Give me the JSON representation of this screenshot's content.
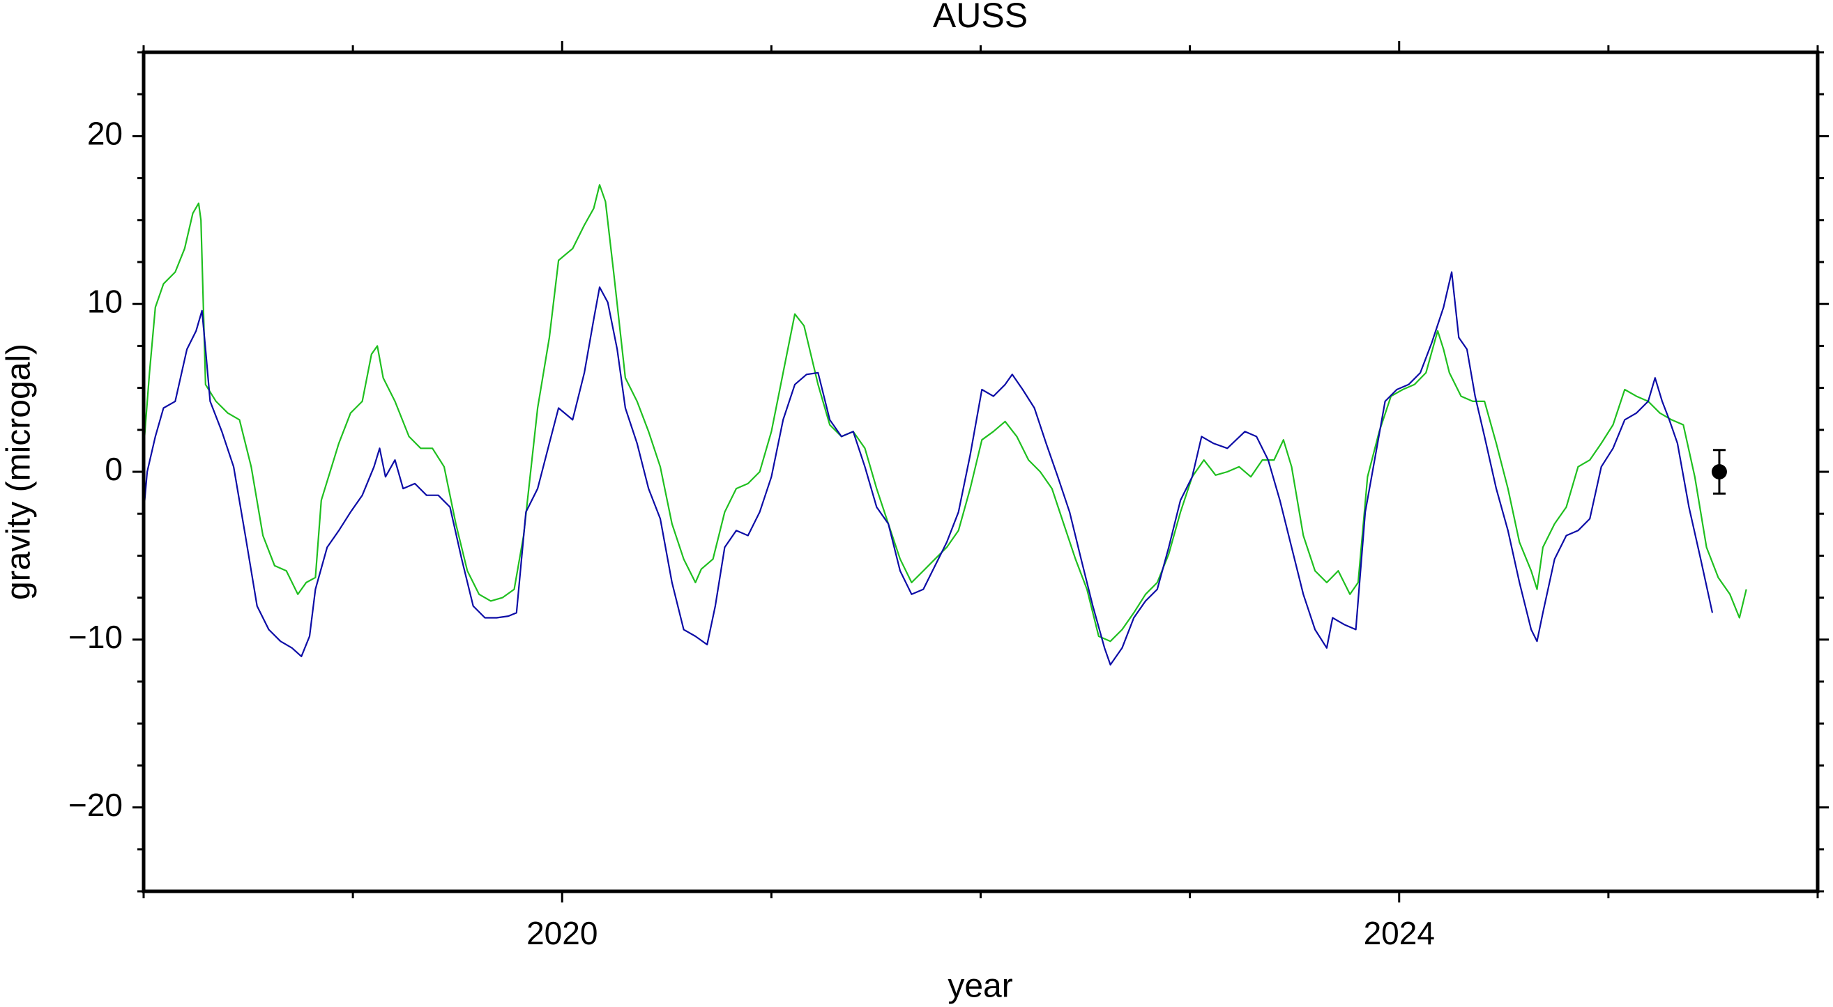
{
  "chart_data": {
    "type": "line",
    "title": "AUSS",
    "xlabel": "year",
    "ylabel": "gravity (microgal)",
    "xlim": [
      2018,
      2026
    ],
    "xticks": [
      2020,
      2024
    ],
    "ylim": [
      -25,
      25
    ],
    "yticks": [
      {
        "value": -20,
        "label": "−20"
      },
      {
        "value": -10,
        "label": "−10"
      },
      0,
      10,
      20
    ],
    "series": [
      {
        "color": "#1fbf1f",
        "x": [
          2018.0,
          2018.028,
          2018.056,
          2018.095,
          2018.151,
          2018.196,
          2018.235,
          2018.263,
          2018.274,
          2018.296,
          2018.346,
          2018.402,
          2018.458,
          2018.514,
          2018.57,
          2018.626,
          2018.682,
          2018.737,
          2018.777,
          2018.821,
          2018.849,
          2018.933,
          2018.989,
          2019.045,
          2019.089,
          2019.117,
          2019.145,
          2019.201,
          2019.268,
          2019.324,
          2019.38,
          2019.436,
          2019.492,
          2019.547,
          2019.603,
          2019.659,
          2019.715,
          2019.771,
          2019.816,
          2019.883,
          2019.939,
          2019.983,
          2020.05,
          2020.106,
          2020.151,
          2020.179,
          2020.207,
          2020.246,
          2020.302,
          2020.358,
          2020.413,
          2020.469,
          2020.525,
          2020.581,
          2020.637,
          2020.665,
          2020.721,
          2020.777,
          2020.832,
          2020.888,
          2020.944,
          2021.0,
          2021.056,
          2021.112,
          2021.156,
          2021.223,
          2021.279,
          2021.335,
          2021.391,
          2021.447,
          2021.503,
          2021.559,
          2021.615,
          2021.67,
          2021.726,
          2021.782,
          2021.838,
          2021.894,
          2021.95,
          2022.006,
          2022.061,
          2022.117,
          2022.173,
          2022.229,
          2022.285,
          2022.341,
          2022.397,
          2022.453,
          2022.508,
          2022.564,
          2022.62,
          2022.676,
          2022.732,
          2022.788,
          2022.844,
          2022.899,
          2022.955,
          2023.011,
          2023.067,
          2023.123,
          2023.179,
          2023.235,
          2023.291,
          2023.346,
          2023.402,
          2023.447,
          2023.486,
          2023.542,
          2023.598,
          2023.654,
          2023.709,
          2023.765,
          2023.804,
          2023.849,
          2023.905,
          2023.961,
          2024.017,
          2024.073,
          2024.128,
          2024.184,
          2024.212,
          2024.24,
          2024.296,
          2024.352,
          2024.408,
          2024.464,
          2024.52,
          2024.575,
          2024.631,
          2024.659,
          2024.687,
          2024.743,
          2024.799,
          2024.855,
          2024.911,
          2024.966,
          2025.022,
          2025.078,
          2025.134,
          2025.19,
          2025.246,
          2025.302,
          2025.358,
          2025.413,
          2025.469,
          2025.525,
          2025.581,
          2025.626,
          2025.659
        ],
        "values": [
          1.4,
          5.9,
          9.8,
          11.2,
          11.9,
          13.3,
          15.4,
          16.0,
          15.0,
          5.2,
          4.2,
          3.5,
          3.1,
          0.3,
          -3.8,
          -5.6,
          -5.9,
          -7.3,
          -6.6,
          -6.3,
          -1.7,
          1.7,
          3.5,
          4.2,
          7.0,
          7.5,
          5.6,
          4.2,
          2.1,
          1.4,
          1.4,
          0.3,
          -3.1,
          -5.9,
          -7.3,
          -7.7,
          -7.5,
          -7.0,
          -3.8,
          3.8,
          8.0,
          12.6,
          13.3,
          14.7,
          15.7,
          17.1,
          16.1,
          11.9,
          5.6,
          4.2,
          2.4,
          0.3,
          -3.1,
          -5.2,
          -6.6,
          -5.8,
          -5.2,
          -2.4,
          -1.0,
          -0.7,
          0,
          2.4,
          5.9,
          9.4,
          8.7,
          5.2,
          2.8,
          2.1,
          2.4,
          1.4,
          -1.0,
          -3.1,
          -5.2,
          -6.6,
          -5.9,
          -5.2,
          -4.5,
          -3.5,
          -1.0,
          1.9,
          2.4,
          3.0,
          2.1,
          0.7,
          0,
          -1.0,
          -3.1,
          -5.2,
          -7.0,
          -9.8,
          -10.1,
          -9.4,
          -8.4,
          -7.3,
          -6.6,
          -4.9,
          -2.4,
          -0.3,
          0.7,
          -0.2,
          0,
          0.3,
          -0.3,
          0.7,
          0.7,
          1.9,
          0.3,
          -3.8,
          -5.9,
          -6.6,
          -5.9,
          -7.3,
          -6.6,
          -0.3,
          2.4,
          4.5,
          4.9,
          5.2,
          5.9,
          8.4,
          7.3,
          5.9,
          4.5,
          4.2,
          4.2,
          1.7,
          -1.0,
          -4.2,
          -5.9,
          -7.0,
          -4.5,
          -3.1,
          -2.1,
          0.3,
          0.7,
          1.7,
          2.8,
          4.9,
          4.5,
          4.2,
          3.5,
          3.1,
          2.8,
          -0.3,
          -4.5,
          -6.3,
          -7.3,
          -8.7,
          -7.0
        ]
      },
      {
        "color": "#0c0ca6",
        "x": [
          2018.0,
          2018.017,
          2018.056,
          2018.095,
          2018.151,
          2018.207,
          2018.251,
          2018.279,
          2018.296,
          2018.318,
          2018.374,
          2018.43,
          2018.486,
          2018.542,
          2018.598,
          2018.654,
          2018.709,
          2018.754,
          2018.793,
          2018.821,
          2018.877,
          2018.933,
          2018.989,
          2019.045,
          2019.101,
          2019.128,
          2019.156,
          2019.201,
          2019.24,
          2019.296,
          2019.352,
          2019.408,
          2019.464,
          2019.52,
          2019.575,
          2019.631,
          2019.687,
          2019.743,
          2019.782,
          2019.827,
          2019.883,
          2019.939,
          2019.983,
          2020.05,
          2020.106,
          2020.151,
          2020.179,
          2020.218,
          2020.263,
          2020.302,
          2020.358,
          2020.413,
          2020.469,
          2020.525,
          2020.581,
          2020.637,
          2020.693,
          2020.732,
          2020.777,
          2020.832,
          2020.888,
          2020.944,
          2021.0,
          2021.056,
          2021.112,
          2021.168,
          2021.223,
          2021.279,
          2021.335,
          2021.391,
          2021.447,
          2021.503,
          2021.559,
          2021.615,
          2021.67,
          2021.726,
          2021.782,
          2021.838,
          2021.894,
          2021.95,
          2022.006,
          2022.061,
          2022.117,
          2022.151,
          2022.201,
          2022.257,
          2022.313,
          2022.369,
          2022.425,
          2022.48,
          2022.536,
          2022.592,
          2022.62,
          2022.676,
          2022.732,
          2022.788,
          2022.844,
          2022.899,
          2022.955,
          2023.011,
          2023.056,
          2023.112,
          2023.179,
          2023.263,
          2023.318,
          2023.374,
          2023.43,
          2023.486,
          2023.542,
          2023.598,
          2023.654,
          2023.682,
          2023.737,
          2023.793,
          2023.838,
          2023.877,
          2023.933,
          2023.989,
          2024.045,
          2024.101,
          2024.156,
          2024.212,
          2024.251,
          2024.285,
          2024.324,
          2024.363,
          2024.408,
          2024.464,
          2024.52,
          2024.575,
          2024.631,
          2024.659,
          2024.687,
          2024.743,
          2024.799,
          2024.855,
          2024.911,
          2024.966,
          2025.022,
          2025.078,
          2025.134,
          2025.19,
          2025.223,
          2025.257,
          2025.291,
          2025.33,
          2025.385,
          2025.441,
          2025.497
        ],
        "values": [
          -2.4,
          0,
          2.1,
          3.8,
          4.2,
          7.3,
          8.4,
          9.6,
          7.3,
          4.2,
          2.4,
          0.3,
          -3.8,
          -8.0,
          -9.4,
          -10.1,
          -10.5,
          -11.0,
          -9.8,
          -7.0,
          -4.5,
          -3.5,
          -2.4,
          -1.4,
          0.3,
          1.4,
          -0.3,
          0.7,
          -1.0,
          -0.7,
          -1.4,
          -1.4,
          -2.1,
          -5.2,
          -8.0,
          -8.7,
          -8.7,
          -8.6,
          -8.4,
          -2.4,
          -1.0,
          1.7,
          3.8,
          3.1,
          5.9,
          9.1,
          11.0,
          10.1,
          7.3,
          3.8,
          1.7,
          -1.0,
          -2.8,
          -6.6,
          -9.4,
          -9.8,
          -10.3,
          -8.0,
          -4.5,
          -3.5,
          -3.8,
          -2.4,
          -0.3,
          3.1,
          5.2,
          5.8,
          5.9,
          3.1,
          2.1,
          2.4,
          0.3,
          -2.1,
          -3.1,
          -5.9,
          -7.3,
          -7.0,
          -5.6,
          -4.2,
          -2.4,
          1.0,
          4.9,
          4.5,
          5.2,
          5.8,
          4.9,
          3.8,
          1.7,
          -0.3,
          -2.4,
          -5.2,
          -8.0,
          -10.5,
          -11.5,
          -10.5,
          -8.7,
          -7.7,
          -7.0,
          -4.5,
          -1.7,
          -0.3,
          2.1,
          1.7,
          1.4,
          2.4,
          2.1,
          0.7,
          -1.7,
          -4.5,
          -7.3,
          -9.4,
          -10.5,
          -8.7,
          -9.1,
          -9.4,
          -2.4,
          0.3,
          4.2,
          4.9,
          5.2,
          5.9,
          7.7,
          9.8,
          11.9,
          8.0,
          7.3,
          4.5,
          2.1,
          -1.0,
          -3.5,
          -6.6,
          -9.4,
          -10.1,
          -8.4,
          -5.2,
          -3.8,
          -3.5,
          -2.8,
          0.3,
          1.4,
          3.1,
          3.5,
          4.2,
          5.6,
          4.2,
          3.1,
          1.7,
          -2.1,
          -5.2,
          -8.4
        ]
      }
    ],
    "points": [
      {
        "x": 2025.53,
        "y": 0,
        "error": 1.3,
        "color": "#000000"
      }
    ]
  }
}
